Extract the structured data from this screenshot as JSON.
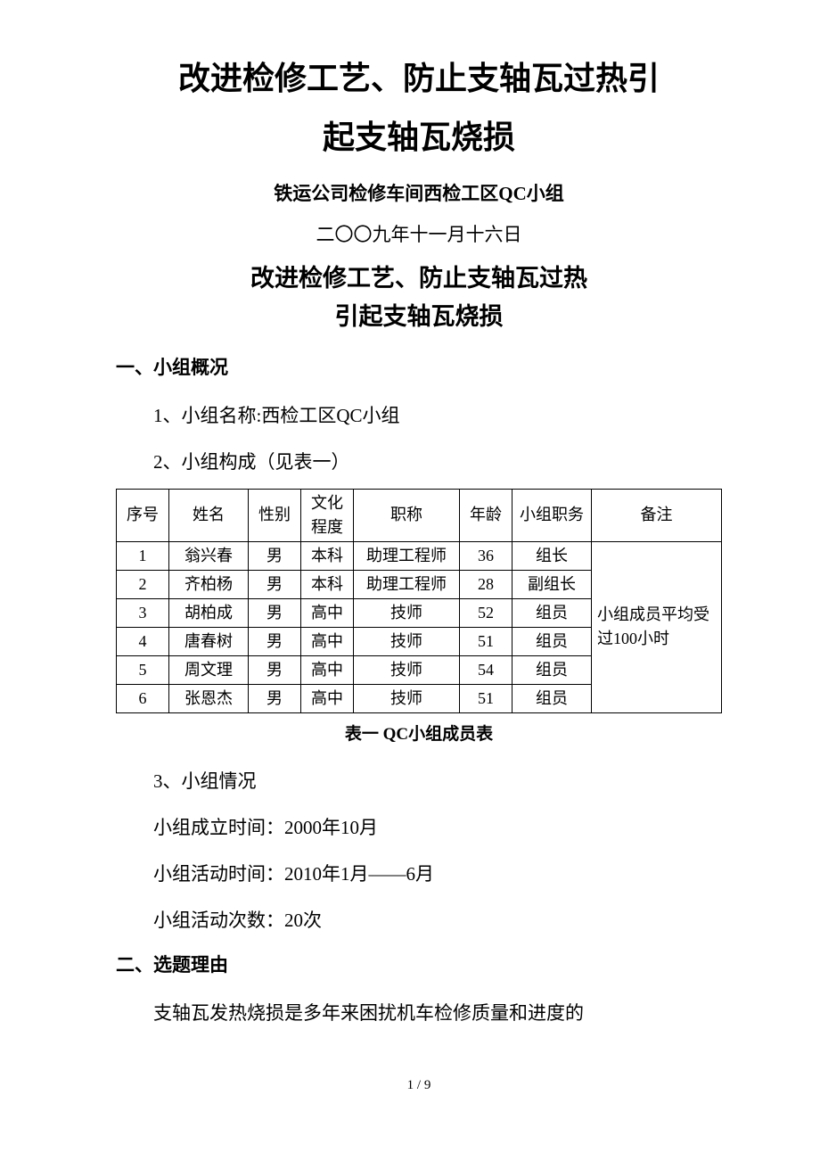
{
  "title": {
    "line1": "改进检修工艺、防止支轴瓦过热引",
    "line2": "起支轴瓦烧损"
  },
  "subtitle": "铁运公司检修车间西检工区QC小组",
  "date": "二〇〇九年十一月十六日",
  "repeat_title": {
    "line1": "改进检修工艺、防止支轴瓦过热",
    "line2": "引起支轴瓦烧损"
  },
  "section1": {
    "heading": "一、小组概况",
    "item1": "1、小组名称:西检工区QC小组",
    "item2": "2、小组构成（见表一）"
  },
  "table": {
    "headers": {
      "seq": "序号",
      "name": "姓名",
      "gender": "性别",
      "edu": "文化程度",
      "title": "职称",
      "age": "年龄",
      "role": "小组职务",
      "remark": "备注"
    },
    "rows": [
      {
        "seq": "1",
        "name": "翁兴春",
        "gender": "男",
        "edu": "本科",
        "title": "助理工程师",
        "age": "36",
        "role": "组长"
      },
      {
        "seq": "2",
        "name": "齐柏杨",
        "gender": "男",
        "edu": "本科",
        "title": "助理工程师",
        "age": "28",
        "role": "副组长"
      },
      {
        "seq": "3",
        "name": "胡柏成",
        "gender": "男",
        "edu": "高中",
        "title": "技师",
        "age": "52",
        "role": "组员"
      },
      {
        "seq": "4",
        "name": "唐春树",
        "gender": "男",
        "edu": "高中",
        "title": "技师",
        "age": "51",
        "role": "组员"
      },
      {
        "seq": "5",
        "name": "周文理",
        "gender": "男",
        "edu": "高中",
        "title": "技师",
        "age": "54",
        "role": "组员"
      },
      {
        "seq": "6",
        "name": "张恩杰",
        "gender": "男",
        "edu": "高中",
        "title": "技师",
        "age": "51",
        "role": "组员"
      }
    ],
    "remark_text": "小组成员平均受过100小时",
    "caption": "表一  QC小组成员表"
  },
  "section1b": {
    "item3": "3、小组情况",
    "line1": "小组成立时间：2000年10月",
    "line2": "小组活动时间：2010年1月——6月",
    "line3": "小组活动次数：20次"
  },
  "section2": {
    "heading": "二、选题理由",
    "body": "支轴瓦发热烧损是多年来困扰机车检修质量和进度的"
  },
  "page_num": "1 / 9"
}
